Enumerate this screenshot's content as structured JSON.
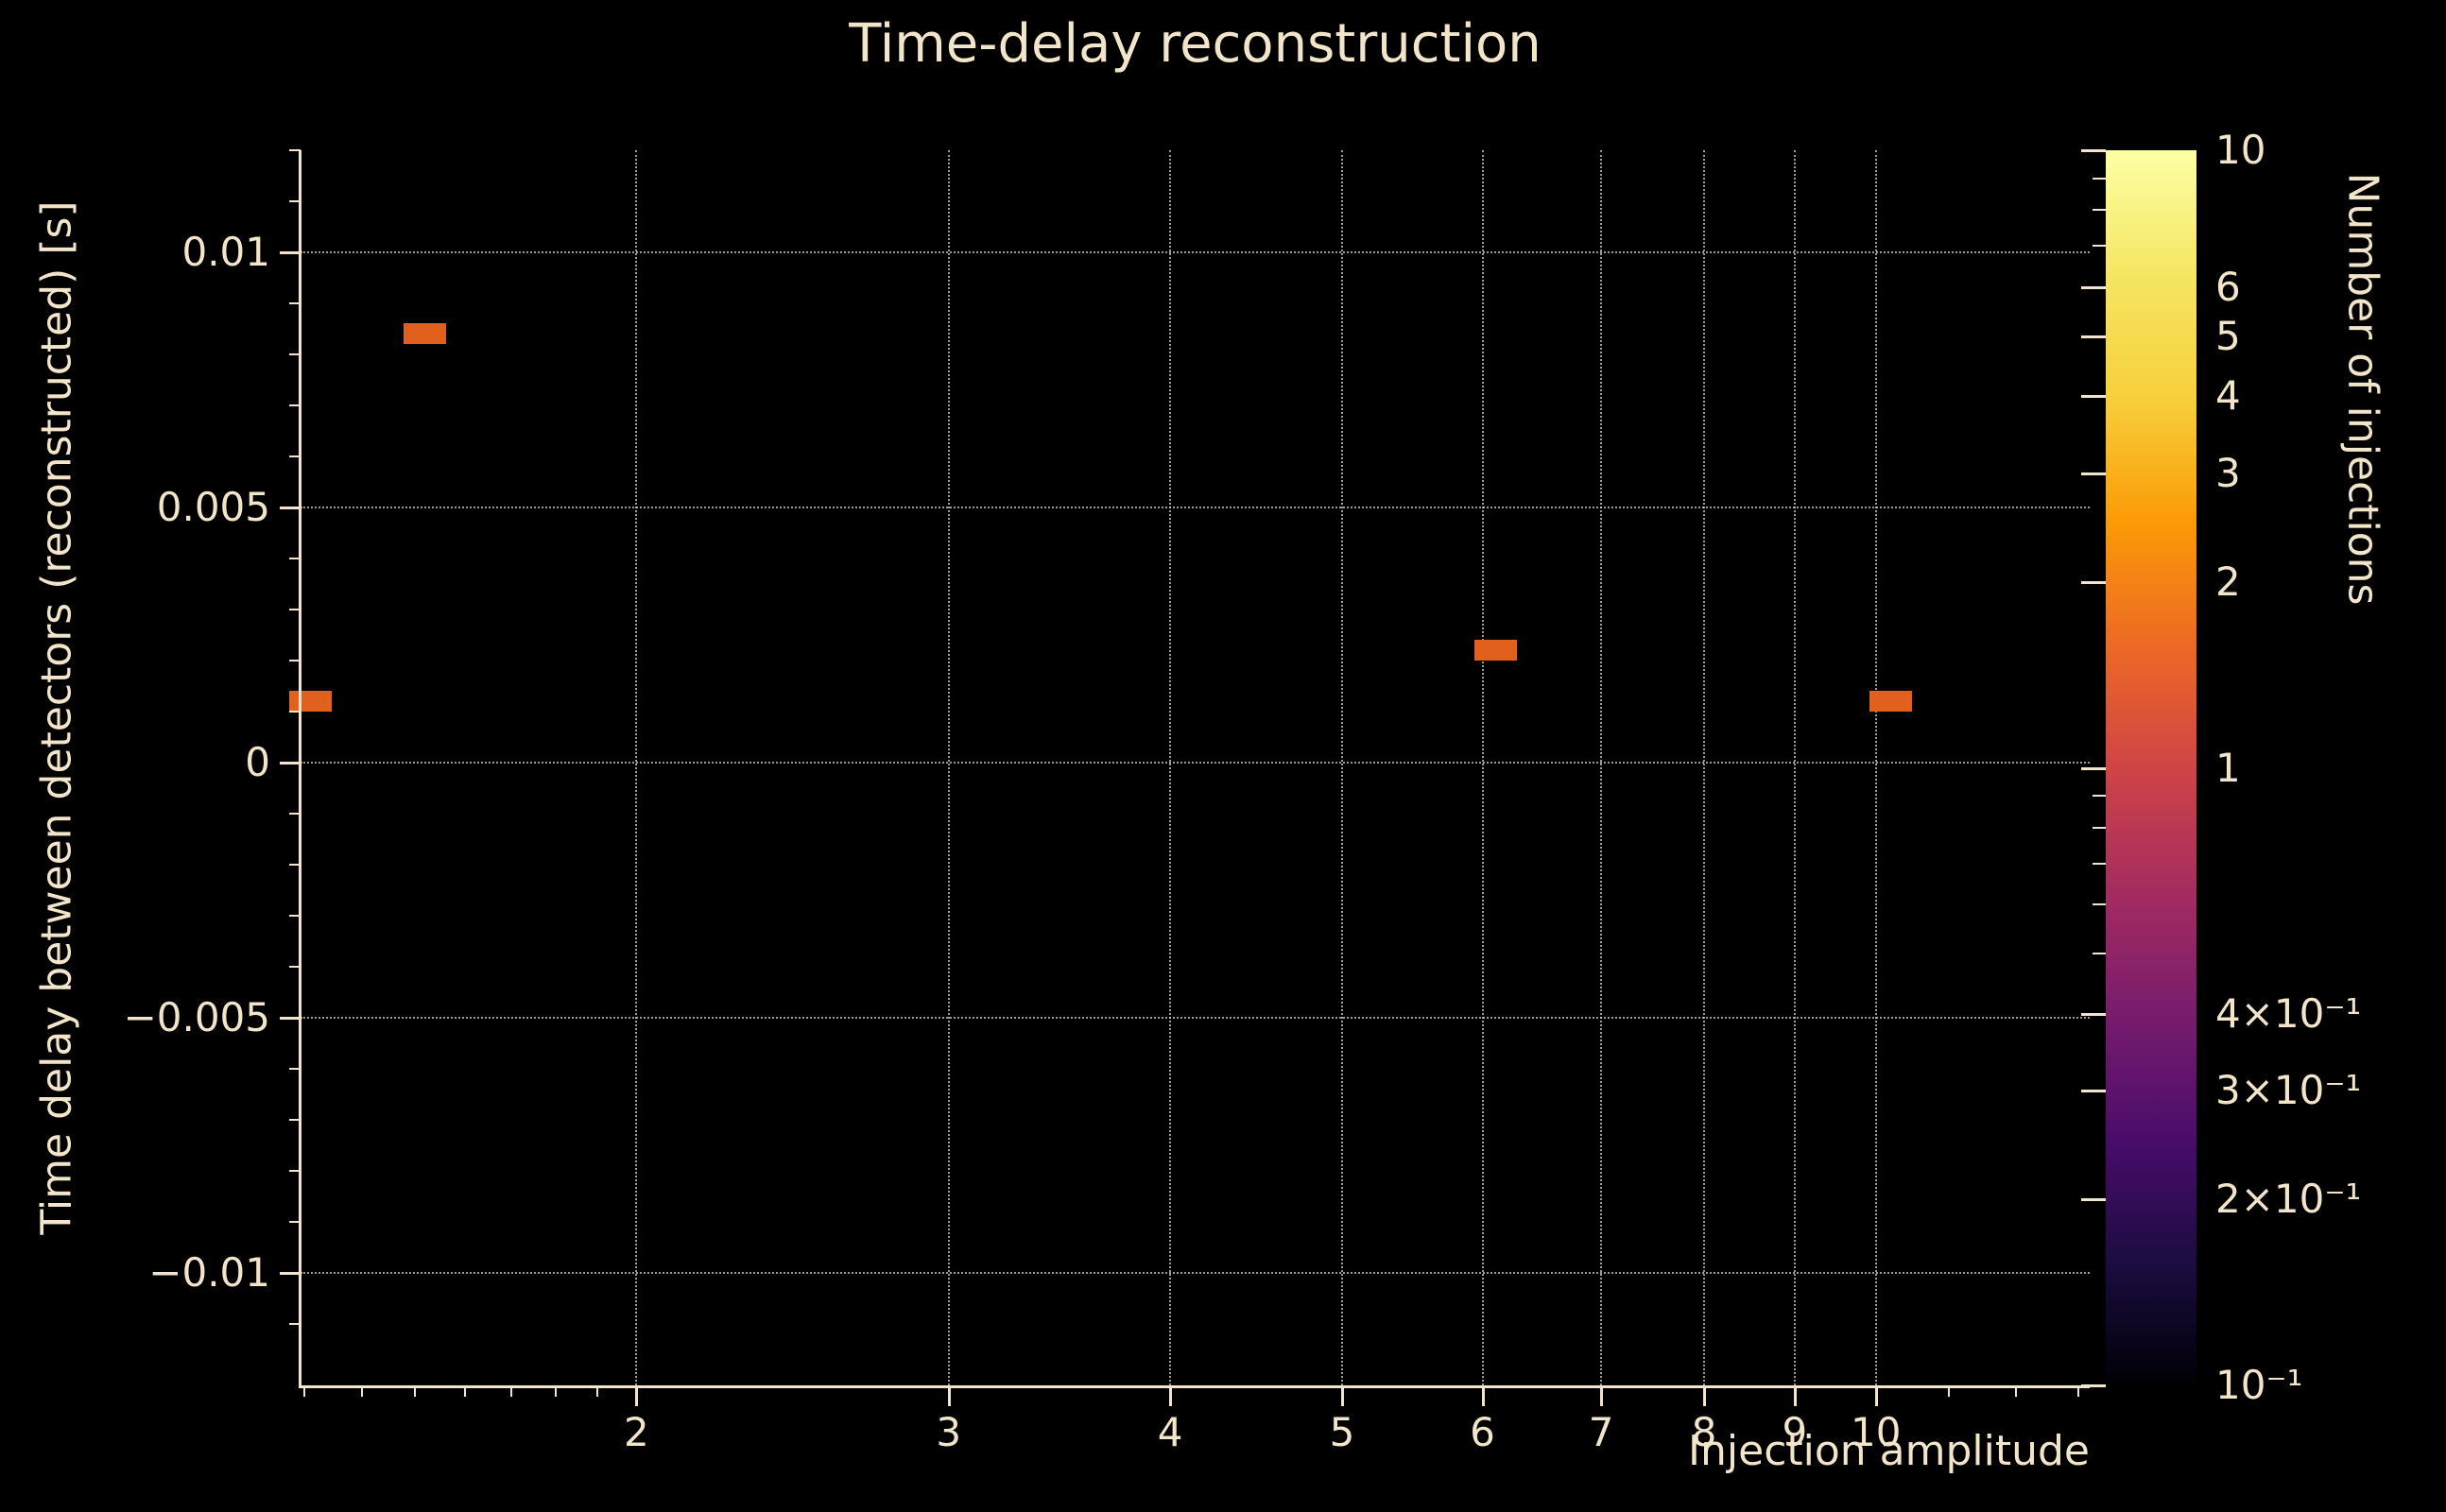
{
  "title": "Time-delay reconstruction",
  "colors": {
    "background": "#000000",
    "text": "#f2e5c9",
    "axis": "#f2e5c9",
    "grid": "#d6d0c0",
    "bin_fill": "#e2601e"
  },
  "chart_data": {
    "type": "heatmap",
    "title": "Time-delay reconstruction",
    "xlabel": "Injection amplitude",
    "ylabel": "Time delay between detectors (reconstructed) [s]",
    "xscale": "log",
    "yscale": "linear",
    "xlim": [
      1.293,
      13.2
    ],
    "ylim": [
      -0.0122,
      0.012
    ],
    "grid": true,
    "x_ticks": [
      2,
      3,
      4,
      5,
      6,
      7,
      8,
      9,
      10
    ],
    "x_tick_labels": [
      "2",
      "3",
      "4",
      "5",
      "6",
      "7",
      "8",
      "9",
      "10"
    ],
    "x_minor_ticks": [
      1.3,
      1.4,
      1.5,
      1.6,
      1.7,
      1.8,
      1.9,
      11,
      12,
      13
    ],
    "y_ticks": [
      -0.01,
      -0.005,
      0,
      0.005,
      0.01
    ],
    "y_tick_labels": [
      "−0.01",
      "−0.005",
      "0",
      "0.005",
      "0.01"
    ],
    "y_minor_step": 0.001,
    "points": [
      {
        "x": 1.31,
        "y": 0.0012,
        "count": 1
      },
      {
        "x": 1.52,
        "y": 0.0084,
        "count": 1
      },
      {
        "x": 6.1,
        "y": 0.0022,
        "count": 1
      },
      {
        "x": 10.2,
        "y": 0.0012,
        "count": 1
      }
    ],
    "bin_color": "#e2601e",
    "colorbar": {
      "label": "Number of injections",
      "scale": "log",
      "min": 0.1,
      "max": 10,
      "ticks": [
        {
          "value": 10,
          "label": "10"
        },
        {
          "value": 6,
          "label": "6"
        },
        {
          "value": 5,
          "label": "5"
        },
        {
          "value": 4,
          "label": "4"
        },
        {
          "value": 3,
          "label": "3"
        },
        {
          "value": 2,
          "label": "2"
        },
        {
          "value": 1,
          "label": "1"
        },
        {
          "value": 0.4,
          "label": "4×10⁻¹"
        },
        {
          "value": 0.3,
          "label": "3×10⁻¹"
        },
        {
          "value": 0.2,
          "label": "2×10⁻¹"
        },
        {
          "value": 0.1,
          "label": "10⁻¹"
        }
      ],
      "minor_ticks": [
        9,
        8,
        7,
        0.9,
        0.8,
        0.7,
        0.6,
        0.5
      ],
      "colormap": "inferno",
      "gradient_stops": [
        "#000004",
        "#1b0c41",
        "#4a0c6b",
        "#781c6d",
        "#a52c60",
        "#cf4446",
        "#ed6925",
        "#fb9b06",
        "#f7d03c",
        "#f5e663",
        "#fcffa4"
      ]
    }
  }
}
